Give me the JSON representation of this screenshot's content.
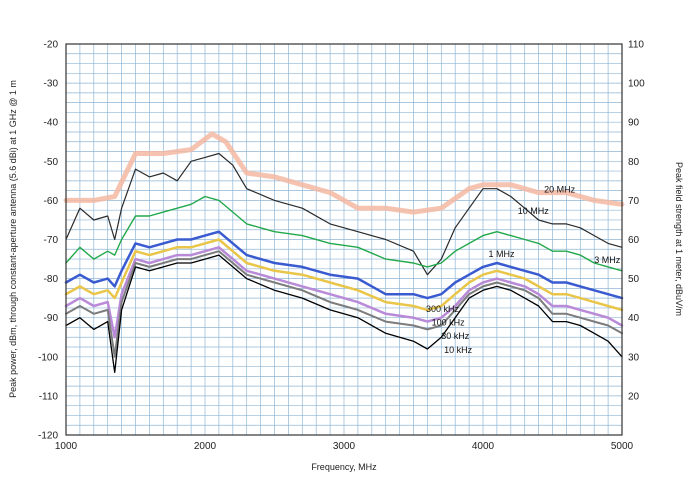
{
  "chart_data": {
    "type": "line",
    "title": "",
    "xlabel": "Frequency, MHz",
    "ylabel": "Peak power, dBm, through constant-aperture antenna (5.6 dBi) at 1 GHz @ 1 m",
    "y2label": "Peak field strength at 1 meter, dBuV/m",
    "xlim": [
      1000,
      5000
    ],
    "ylim": [
      -120,
      -20
    ],
    "y2lim": [
      10,
      110
    ],
    "xticks": [
      "1000",
      "2000",
      "3000",
      "4000",
      "5000"
    ],
    "yticks": [
      "-20",
      "-30",
      "-40",
      "-50",
      "-60",
      "-70",
      "-80",
      "-90",
      "-100",
      "-110",
      "-120"
    ],
    "y2ticks": [
      "110",
      "100",
      "90",
      "80",
      "70",
      "60",
      "50",
      "40",
      "30",
      "20"
    ],
    "grid": true,
    "series": [
      {
        "name": "20 MHz",
        "color": "#f4b9a2",
        "width": 5,
        "x": [
          1000,
          1200,
          1350,
          1500,
          1700,
          1900,
          2050,
          2150,
          2300,
          2500,
          2700,
          2900,
          3100,
          3300,
          3500,
          3700,
          3900,
          4000,
          4200,
          4400,
          4600,
          4800,
          5000
        ],
        "y": [
          -60,
          -60,
          -59,
          -48,
          -48,
          -47,
          -43,
          -45,
          -53,
          -54,
          -56,
          -58,
          -62,
          -62,
          -63,
          -62,
          -57,
          -56,
          -56,
          -58,
          -58,
          -60,
          -61
        ]
      },
      {
        "name": "10 MHz",
        "color": "#2a2a2a",
        "width": 1.2,
        "x": [
          1000,
          1100,
          1200,
          1300,
          1350,
          1400,
          1500,
          1600,
          1700,
          1800,
          1900,
          2000,
          2100,
          2200,
          2300,
          2500,
          2700,
          2900,
          3100,
          3300,
          3500,
          3600,
          3700,
          3800,
          3900,
          4000,
          4100,
          4200,
          4300,
          4400,
          4500,
          4600,
          4700,
          4800,
          4900,
          5000
        ],
        "y": [
          -70,
          -62,
          -65,
          -64,
          -70,
          -62,
          -52,
          -54,
          -53,
          -55,
          -50,
          -49,
          -48,
          -51,
          -57,
          -60,
          -62,
          -66,
          -68,
          -70,
          -73,
          -79,
          -75,
          -67,
          -62,
          -57,
          -57,
          -59,
          -62,
          -65,
          -66,
          -66,
          -67,
          -69,
          -71,
          -72
        ]
      },
      {
        "name": "3 MHz",
        "color": "#22a84a",
        "width": 1.4,
        "x": [
          1000,
          1100,
          1200,
          1300,
          1350,
          1400,
          1500,
          1600,
          1700,
          1800,
          1900,
          2000,
          2100,
          2200,
          2300,
          2500,
          2700,
          2900,
          3100,
          3300,
          3500,
          3600,
          3700,
          3800,
          3900,
          4000,
          4100,
          4200,
          4300,
          4400,
          4500,
          4600,
          4700,
          4800,
          4900,
          5000
        ],
        "y": [
          -76,
          -72,
          -75,
          -73,
          -74,
          -70,
          -64,
          -64,
          -63,
          -62,
          -61,
          -59,
          -60,
          -63,
          -66,
          -68,
          -69,
          -71,
          -72,
          -75,
          -76,
          -77,
          -76,
          -73,
          -71,
          -69,
          -68,
          -69,
          -70,
          -71,
          -73,
          -73,
          -74,
          -76,
          -77,
          -78
        ]
      },
      {
        "name": "1 MHz",
        "color": "#3a5bd0",
        "width": 2.5,
        "x": [
          1000,
          1100,
          1200,
          1300,
          1350,
          1400,
          1500,
          1600,
          1700,
          1800,
          1900,
          2000,
          2100,
          2200,
          2300,
          2500,
          2700,
          2900,
          3100,
          3300,
          3500,
          3600,
          3700,
          3800,
          3900,
          4000,
          4100,
          4200,
          4300,
          4400,
          4500,
          4600,
          4700,
          4800,
          4900,
          5000
        ],
        "y": [
          -81,
          -79,
          -81,
          -80,
          -82,
          -78,
          -71,
          -72,
          -71,
          -70,
          -70,
          -69,
          -68,
          -71,
          -74,
          -76,
          -77,
          -79,
          -80,
          -84,
          -84,
          -85,
          -84,
          -81,
          -79,
          -77,
          -76,
          -77,
          -78,
          -79,
          -81,
          -81,
          -82,
          -83,
          -84,
          -85
        ]
      },
      {
        "name": "300 kHz",
        "color": "#e9c64a",
        "width": 2.5,
        "x": [
          1000,
          1100,
          1200,
          1300,
          1350,
          1400,
          1500,
          1600,
          1700,
          1800,
          1900,
          2000,
          2100,
          2200,
          2300,
          2500,
          2700,
          2900,
          3100,
          3300,
          3500,
          3600,
          3700,
          3800,
          3900,
          4000,
          4100,
          4200,
          4300,
          4400,
          4500,
          4600,
          4700,
          4800,
          4900,
          5000
        ],
        "y": [
          -84,
          -82,
          -84,
          -83,
          -85,
          -81,
          -73,
          -74,
          -73,
          -72,
          -72,
          -71,
          -70,
          -73,
          -76,
          -78,
          -79,
          -81,
          -83,
          -86,
          -87,
          -88,
          -87,
          -84,
          -81,
          -79,
          -78,
          -79,
          -80,
          -82,
          -84,
          -84,
          -85,
          -86,
          -87,
          -88
        ]
      },
      {
        "name": "100 kHz",
        "color": "#b98ad8",
        "width": 2.5,
        "x": [
          1000,
          1100,
          1200,
          1300,
          1350,
          1400,
          1500,
          1600,
          1700,
          1800,
          1900,
          2000,
          2100,
          2200,
          2300,
          2500,
          2700,
          2900,
          3100,
          3300,
          3500,
          3600,
          3700,
          3800,
          3900,
          4000,
          4100,
          4200,
          4300,
          4400,
          4500,
          4600,
          4700,
          4800,
          4900,
          5000
        ],
        "y": [
          -87,
          -85,
          -87,
          -86,
          -95,
          -84,
          -75,
          -76,
          -75,
          -74,
          -74,
          -73,
          -72,
          -75,
          -78,
          -80,
          -82,
          -84,
          -86,
          -89,
          -90,
          -91,
          -90,
          -87,
          -83,
          -81,
          -80,
          -81,
          -82,
          -84,
          -87,
          -87,
          -88,
          -89,
          -90,
          -92
        ]
      },
      {
        "name": "30 kHz",
        "color": "#7c7c7c",
        "width": 2,
        "x": [
          1000,
          1100,
          1200,
          1300,
          1350,
          1400,
          1500,
          1600,
          1700,
          1800,
          1900,
          2000,
          2100,
          2200,
          2300,
          2500,
          2700,
          2900,
          3100,
          3300,
          3500,
          3600,
          3700,
          3800,
          3900,
          4000,
          4100,
          4200,
          4300,
          4400,
          4500,
          4600,
          4700,
          4800,
          4900,
          5000
        ],
        "y": [
          -89,
          -87,
          -89,
          -88,
          -100,
          -86,
          -76,
          -77,
          -76,
          -75,
          -75,
          -74,
          -73,
          -76,
          -79,
          -81,
          -83,
          -86,
          -88,
          -91,
          -92,
          -93,
          -92,
          -88,
          -84,
          -82,
          -81,
          -82,
          -83,
          -85,
          -89,
          -89,
          -90,
          -91,
          -92,
          -94
        ]
      },
      {
        "name": "10 kHz",
        "color": "#000000",
        "width": 1.3,
        "x": [
          1000,
          1100,
          1200,
          1300,
          1350,
          1400,
          1500,
          1600,
          1700,
          1800,
          1900,
          2000,
          2100,
          2200,
          2300,
          2500,
          2700,
          2900,
          3100,
          3300,
          3500,
          3600,
          3700,
          3800,
          3900,
          4000,
          4100,
          4200,
          4300,
          4400,
          4500,
          4600,
          4700,
          4800,
          4900,
          5000
        ],
        "y": [
          -92,
          -90,
          -93,
          -91,
          -104,
          -88,
          -77,
          -78,
          -77,
          -76,
          -76,
          -75,
          -74,
          -77,
          -80,
          -83,
          -85,
          -88,
          -90,
          -94,
          -96,
          -98,
          -95,
          -90,
          -85,
          -83,
          -82,
          -83,
          -85,
          -87,
          -91,
          -91,
          -92,
          -94,
          -96,
          -100
        ]
      }
    ],
    "annotations": [
      {
        "text": "20 MHz",
        "x": 4440,
        "y": -58
      },
      {
        "text": "10 MHz",
        "x": 4250,
        "y": -63.5
      },
      {
        "text": "3 MHz",
        "x": 4800,
        "y": -76
      },
      {
        "text": "1 MHz",
        "x": 4040,
        "y": -74.5
      },
      {
        "text": "300 kHz",
        "x": 3590,
        "y": -88.5
      },
      {
        "text": "100 kHz",
        "x": 3630,
        "y": -92
      },
      {
        "text": "30 kHz",
        "x": 3700,
        "y": -95.5
      },
      {
        "text": "10 kHz",
        "x": 3720,
        "y": -99
      }
    ]
  }
}
